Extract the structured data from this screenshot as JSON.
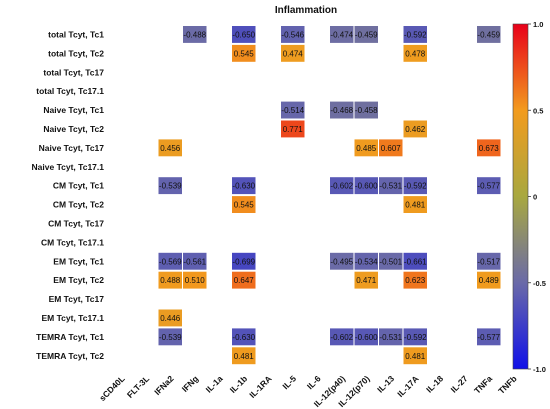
{
  "chart_data": {
    "type": "heatmap",
    "title": "Inflammation",
    "columns": [
      "sCD40L",
      "FLT-3L",
      "IFNa2",
      "IFNg",
      "IL-1a",
      "IL-1b",
      "IL-1RA",
      "IL-5",
      "IL-6",
      "IL-12(p40)",
      "IL-12(p70)",
      "IL-13",
      "IL-17A",
      "IL-18",
      "IL-27",
      "TNFa",
      "TNFb"
    ],
    "rows": [
      "total Tcyt, Tc1",
      "total Tcyt, Tc2",
      "total Tcyt, Tc17",
      "total Tcyt, Tc17.1",
      "Naive Tcyt, Tc1",
      "Naive Tcyt, Tc2",
      "Naive Tcyt, Tc17",
      "Naive Tcyt, Tc17.1",
      "CM Tcyt, Tc1",
      "CM Tcyt, Tc2",
      "CM Tcyt, Tc17",
      "CM Tcyt, Tc17.1",
      "EM Tcyt, Tc1",
      "EM Tcyt, Tc2",
      "EM Tcyt, Tc17",
      "EM Tcyt, Tc17.1",
      "TEMRA Tcyt, Tc1",
      "TEMRA Tcyt, Tc2"
    ],
    "cells": [
      {
        "row": 0,
        "col": 3,
        "value": -0.488
      },
      {
        "row": 0,
        "col": 5,
        "value": -0.65
      },
      {
        "row": 0,
        "col": 7,
        "value": -0.546
      },
      {
        "row": 0,
        "col": 9,
        "value": -0.474
      },
      {
        "row": 0,
        "col": 10,
        "value": -0.459
      },
      {
        "row": 0,
        "col": 12,
        "value": -0.592
      },
      {
        "row": 0,
        "col": 15,
        "value": -0.459
      },
      {
        "row": 1,
        "col": 5,
        "value": 0.545
      },
      {
        "row": 1,
        "col": 7,
        "value": 0.474
      },
      {
        "row": 1,
        "col": 12,
        "value": 0.478
      },
      {
        "row": 4,
        "col": 7,
        "value": -0.514
      },
      {
        "row": 4,
        "col": 9,
        "value": -0.468
      },
      {
        "row": 4,
        "col": 10,
        "value": -0.458
      },
      {
        "row": 5,
        "col": 7,
        "value": 0.771
      },
      {
        "row": 5,
        "col": 12,
        "value": 0.462
      },
      {
        "row": 6,
        "col": 2,
        "value": 0.456
      },
      {
        "row": 6,
        "col": 10,
        "value": 0.485
      },
      {
        "row": 6,
        "col": 11,
        "value": 0.607
      },
      {
        "row": 6,
        "col": 15,
        "value": 0.673
      },
      {
        "row": 8,
        "col": 2,
        "value": -0.539
      },
      {
        "row": 8,
        "col": 5,
        "value": -0.63
      },
      {
        "row": 8,
        "col": 9,
        "value": -0.602
      },
      {
        "row": 8,
        "col": 10,
        "value": -0.6
      },
      {
        "row": 8,
        "col": 11,
        "value": -0.531
      },
      {
        "row": 8,
        "col": 12,
        "value": -0.592
      },
      {
        "row": 8,
        "col": 15,
        "value": -0.577
      },
      {
        "row": 9,
        "col": 5,
        "value": 0.545
      },
      {
        "row": 9,
        "col": 12,
        "value": 0.481
      },
      {
        "row": 12,
        "col": 2,
        "value": -0.569
      },
      {
        "row": 12,
        "col": 3,
        "value": -0.561
      },
      {
        "row": 12,
        "col": 5,
        "value": -0.699
      },
      {
        "row": 12,
        "col": 9,
        "value": -0.495
      },
      {
        "row": 12,
        "col": 10,
        "value": -0.534
      },
      {
        "row": 12,
        "col": 11,
        "value": -0.501
      },
      {
        "row": 12,
        "col": 12,
        "value": -0.661
      },
      {
        "row": 12,
        "col": 15,
        "value": -0.517
      },
      {
        "row": 13,
        "col": 2,
        "value": 0.488
      },
      {
        "row": 13,
        "col": 3,
        "value": 0.51
      },
      {
        "row": 13,
        "col": 5,
        "value": 0.647
      },
      {
        "row": 13,
        "col": 10,
        "value": 0.471
      },
      {
        "row": 13,
        "col": 12,
        "value": 0.623
      },
      {
        "row": 13,
        "col": 15,
        "value": 0.489
      },
      {
        "row": 15,
        "col": 2,
        "value": 0.446
      },
      {
        "row": 16,
        "col": 2,
        "value": -0.539
      },
      {
        "row": 16,
        "col": 5,
        "value": -0.63
      },
      {
        "row": 16,
        "col": 9,
        "value": -0.602
      },
      {
        "row": 16,
        "col": 10,
        "value": -0.6
      },
      {
        "row": 16,
        "col": 11,
        "value": -0.531
      },
      {
        "row": 16,
        "col": 12,
        "value": -0.592
      },
      {
        "row": 16,
        "col": 15,
        "value": -0.577
      },
      {
        "row": 17,
        "col": 5,
        "value": 0.481
      },
      {
        "row": 17,
        "col": 12,
        "value": 0.481
      }
    ],
    "value_range": [
      -1.0,
      1.0
    ],
    "colorbar": {
      "ticks": [
        "1.0",
        "0.5",
        "0",
        "-0.5",
        "-1.0"
      ],
      "tick_values": [
        1.0,
        0.5,
        0,
        -0.5,
        -1.0
      ],
      "stops": [
        {
          "value": 1.0,
          "color": "#e8001a"
        },
        {
          "value": 0.5,
          "color": "#f29b1e"
        },
        {
          "value": 0.0,
          "color": "#a8a840"
        },
        {
          "value": -0.5,
          "color": "#6a6aa8"
        },
        {
          "value": -1.0,
          "color": "#1010e8"
        }
      ]
    },
    "grid": false
  }
}
